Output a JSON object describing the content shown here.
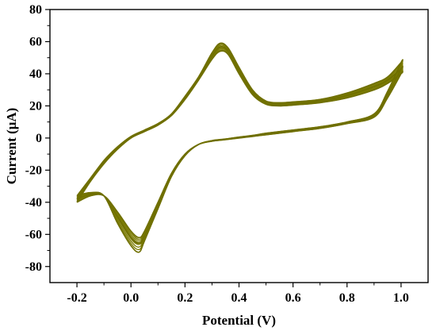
{
  "chart_data": {
    "type": "line",
    "xlabel": "Potential (V)",
    "ylabel": "Current (μA)",
    "xlim": [
      -0.3,
      1.1
    ],
    "ylim": [
      -90,
      80
    ],
    "x_ticks": [
      -0.2,
      0.0,
      0.2,
      0.4,
      0.6,
      0.8,
      1.0
    ],
    "x_tick_labels": [
      "-0.2",
      "0.0",
      "0.2",
      "0.4",
      "0.6",
      "0.8",
      "1.0"
    ],
    "y_ticks": [
      -80,
      -60,
      -40,
      -20,
      0,
      20,
      40,
      60,
      80
    ],
    "y_tick_labels": [
      "-80",
      "-60",
      "-40",
      "-20",
      "0",
      "20",
      "40",
      "60",
      "80"
    ],
    "grid": false,
    "legend": "none",
    "line_color": "#7a7a00",
    "series": [
      {
        "description_forward": "anodic sweep",
        "x": [
          -0.2,
          -0.15,
          -0.1,
          -0.05,
          0.0,
          0.05,
          0.1,
          0.15,
          0.2,
          0.25,
          0.3,
          0.33,
          0.36,
          0.4,
          0.45,
          0.5,
          0.55,
          0.6,
          0.7,
          0.8,
          0.9,
          0.95,
          1.0
        ],
        "y": [
          -40,
          -27,
          -16,
          -7,
          0,
          4,
          8,
          14,
          24,
          36,
          49,
          54,
          52,
          40,
          27,
          21,
          20,
          20.5,
          22,
          25,
          30,
          34,
          40
        ],
        "x_rev": [
          1.0,
          0.95,
          0.9,
          0.8,
          0.7,
          0.6,
          0.5,
          0.45,
          0.4,
          0.35,
          0.3,
          0.25,
          0.2,
          0.15,
          0.1,
          0.05,
          0.03,
          0.0,
          -0.05,
          -0.1,
          -0.15,
          -0.2
        ],
        "y_rev": [
          40,
          25,
          13,
          9,
          6,
          4,
          2,
          1,
          0,
          -1,
          -2,
          -4,
          -10,
          -22,
          -40,
          -58,
          -62,
          -58,
          -46,
          -36,
          -36,
          -40
        ]
      },
      {
        "x": [
          -0.2,
          -0.15,
          -0.1,
          -0.05,
          0.0,
          0.05,
          0.1,
          0.15,
          0.2,
          0.25,
          0.3,
          0.33,
          0.36,
          0.4,
          0.45,
          0.5,
          0.55,
          0.6,
          0.7,
          0.8,
          0.9,
          0.95,
          1.0
        ],
        "y": [
          -38,
          -26,
          -15,
          -6,
          0.5,
          4.5,
          8.5,
          14.5,
          25,
          37,
          51,
          56.5,
          54,
          42,
          28.5,
          22,
          21,
          21.5,
          23,
          26.5,
          32,
          36,
          43
        ],
        "x_rev": [
          1.0,
          0.95,
          0.9,
          0.8,
          0.7,
          0.6,
          0.5,
          0.45,
          0.4,
          0.35,
          0.3,
          0.25,
          0.2,
          0.15,
          0.1,
          0.05,
          0.03,
          0.0,
          -0.05,
          -0.1,
          -0.15,
          -0.2
        ],
        "y_rev": [
          43,
          27,
          14,
          9.5,
          6.5,
          4.5,
          2.5,
          1.3,
          0.3,
          -0.8,
          -1.8,
          -4,
          -10.5,
          -23,
          -42,
          -61,
          -65.5,
          -62,
          -49,
          -36,
          -35,
          -38
        ]
      },
      {
        "x": [
          -0.2,
          -0.15,
          -0.1,
          -0.05,
          0.0,
          0.05,
          0.1,
          0.15,
          0.2,
          0.25,
          0.3,
          0.33,
          0.36,
          0.4,
          0.45,
          0.5,
          0.55,
          0.6,
          0.7,
          0.8,
          0.9,
          0.95,
          1.0
        ],
        "y": [
          -36,
          -25,
          -14,
          -5.5,
          1,
          5,
          9,
          15,
          26,
          38,
          53,
          59,
          56,
          44,
          30,
          23,
          22,
          22.5,
          24,
          28,
          34,
          38,
          47
        ],
        "x_rev": [
          1.0,
          0.95,
          0.9,
          0.8,
          0.7,
          0.6,
          0.5,
          0.45,
          0.4,
          0.35,
          0.3,
          0.25,
          0.2,
          0.15,
          0.1,
          0.05,
          0.03,
          0.0,
          -0.05,
          -0.1,
          -0.15,
          -0.2
        ],
        "y_rev": [
          47,
          29,
          15,
          10,
          7,
          5,
          3,
          1.6,
          0.6,
          -0.6,
          -1.6,
          -4,
          -11,
          -24,
          -44,
          -64,
          -71,
          -67,
          -53,
          -36,
          -34,
          -36
        ]
      }
    ]
  }
}
